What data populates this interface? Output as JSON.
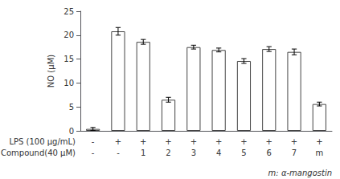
{
  "chart_data": {
    "type": "bar",
    "values": [
      0.4,
      20.8,
      18.6,
      6.5,
      17.5,
      16.9,
      14.6,
      17.1,
      16.5,
      5.6
    ],
    "errors": [
      0.3,
      0.8,
      0.5,
      0.5,
      0.4,
      0.4,
      0.5,
      0.5,
      0.6,
      0.4
    ],
    "category_rows": [
      {
        "label": "LPS (100 μg/mL)",
        "values": [
          "-",
          "+",
          "+",
          "+",
          "+",
          "+",
          "+",
          "+",
          "+",
          "+"
        ]
      },
      {
        "label": "Compound(40 μM)",
        "values": [
          "-",
          "-",
          "1",
          "2",
          "3",
          "4",
          "5",
          "6",
          "7",
          "m"
        ]
      }
    ],
    "ylabel": "NO (μM)",
    "note": "m: α-mangostin",
    "ylim": [
      0,
      25
    ],
    "yticks": [
      0,
      5,
      10,
      15,
      20,
      25
    ],
    "color": "#ffffff",
    "edge_color": "#444444",
    "error_color": "#000000",
    "grid": false
  }
}
